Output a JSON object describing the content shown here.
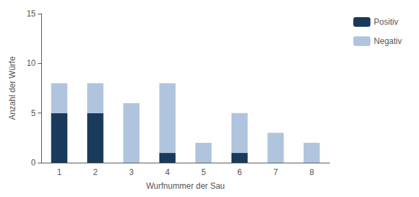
{
  "chart_data": {
    "type": "bar",
    "stacked": true,
    "categories": [
      1,
      2,
      3,
      4,
      5,
      6,
      7,
      8
    ],
    "series": [
      {
        "name": "Positiv",
        "color": "#1a3a5c",
        "values": [
          5,
          5,
          0,
          1,
          0,
          1,
          0,
          0
        ]
      },
      {
        "name": "Negativ",
        "color": "#b0c4de",
        "values": [
          3,
          3,
          6,
          7,
          2,
          4,
          3,
          2
        ]
      }
    ],
    "xlabel": "Wurfnummer der Sau",
    "ylabel": "Anzahl der Würfe",
    "ylim": [
      0,
      15
    ],
    "yticks": [
      0,
      5,
      10,
      15
    ],
    "grid": false,
    "legend": "upper right"
  }
}
